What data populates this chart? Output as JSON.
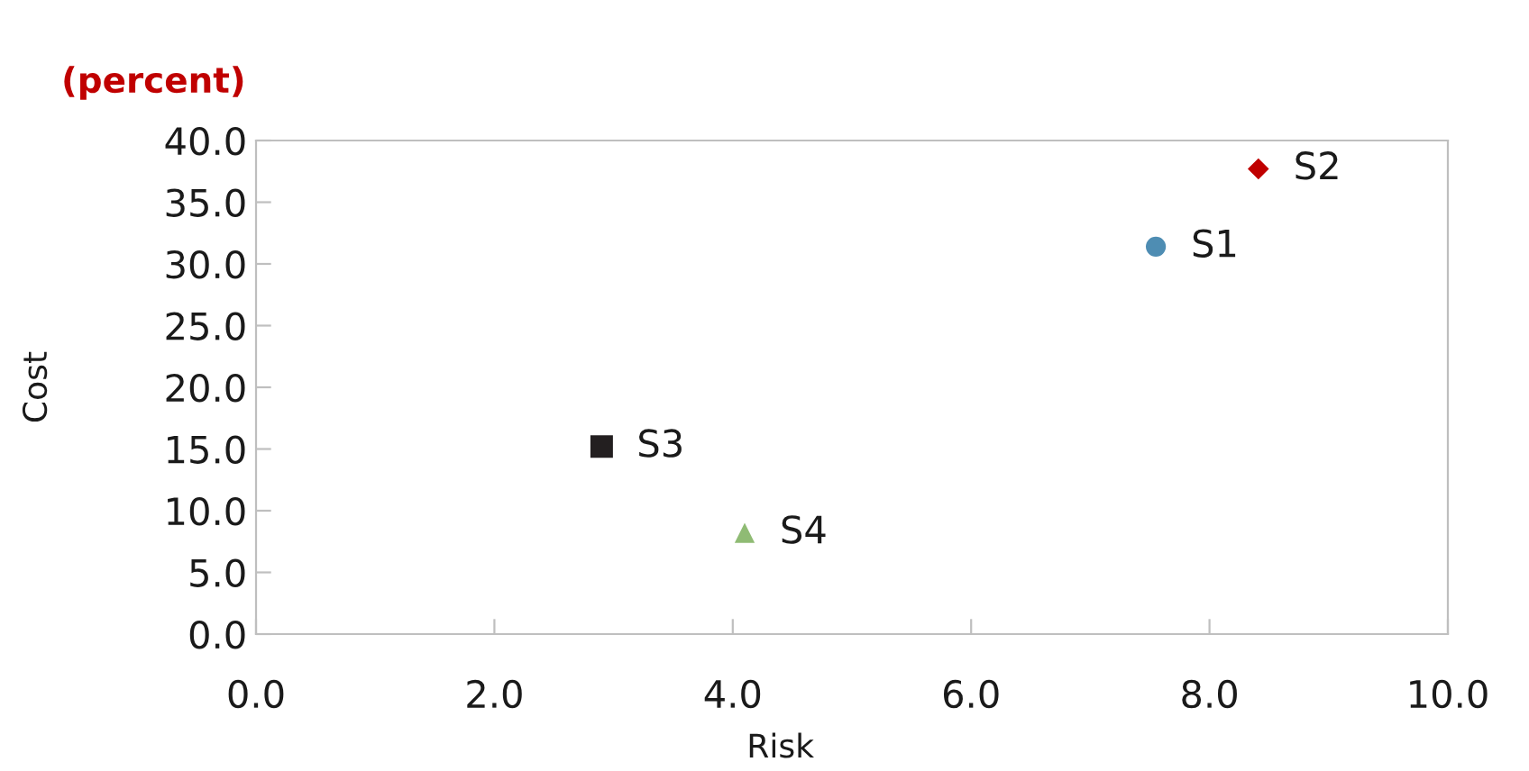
{
  "chart_data": {
    "type": "scatter",
    "xlabel": "Risk",
    "ylabel": "Cost",
    "annotations": [
      "(percent)"
    ],
    "series": [
      {
        "name": "S1",
        "color": "#4e8db3",
        "marker": "circle",
        "x": [
          7.55
        ],
        "values": [
          31.4
        ]
      },
      {
        "name": "S2",
        "color": "#c00000",
        "marker": "diamond",
        "x": [
          8.41
        ],
        "values": [
          37.7
        ]
      },
      {
        "name": "S3",
        "color": "#231f20",
        "marker": "square",
        "x": [
          2.9
        ],
        "values": [
          15.2
        ]
      },
      {
        "name": "S4",
        "color": "#8fbb74",
        "marker": "triangle",
        "x": [
          4.1
        ],
        "values": [
          8.2
        ]
      }
    ],
    "xlim": [
      0,
      10
    ],
    "xticks": [
      {
        "value": 0,
        "label": "0.0"
      },
      {
        "value": 2,
        "label": "2.0"
      },
      {
        "value": 4,
        "label": "4.0"
      },
      {
        "value": 6,
        "label": "6.0"
      },
      {
        "value": 8,
        "label": "8.0"
      },
      {
        "value": 10,
        "label": "10.0"
      }
    ],
    "ylim": [
      0,
      40
    ],
    "yticks": [
      {
        "value": 0,
        "label": "0.0"
      },
      {
        "value": 5,
        "label": "5.0"
      },
      {
        "value": 10,
        "label": "10.0"
      },
      {
        "value": 15,
        "label": "15.0"
      },
      {
        "value": 20,
        "label": "20.0"
      },
      {
        "value": 25,
        "label": "25.0"
      },
      {
        "value": 30,
        "label": "30.0"
      },
      {
        "value": 35,
        "label": "35.0"
      },
      {
        "value": 40,
        "label": "40.0"
      }
    ],
    "grid": false,
    "legend": false
  }
}
